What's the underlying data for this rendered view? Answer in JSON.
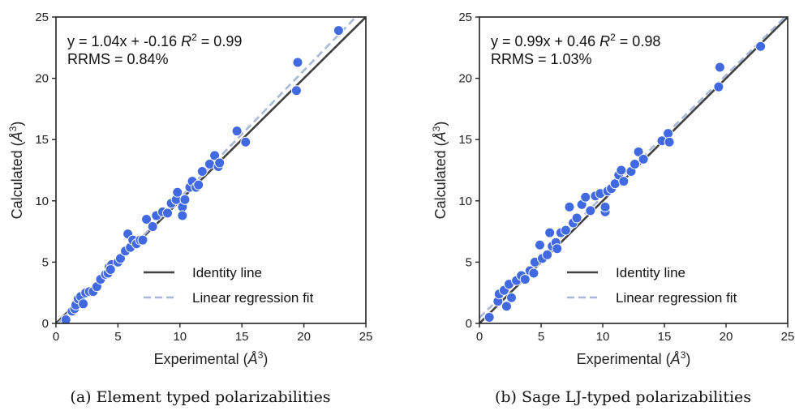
{
  "chart_data": [
    {
      "type": "scatter",
      "annotation": {
        "equation": "y = 1.04x + -0.16",
        "r2_label": "R",
        "r2_value": " = 0.99",
        "rrms": "RRMS = 0.84%"
      },
      "xlabel": {
        "text": "Experimental (",
        "unit": "Å",
        "sup": "3",
        "close": ")"
      },
      "ylabel": {
        "text": "Calculated (",
        "unit": "Å",
        "sup": "3",
        "close": ")"
      },
      "caption": "(a) Element typed polarizabilities",
      "xlim": [
        0,
        25
      ],
      "ylim": [
        0,
        25
      ],
      "ticks": [
        0,
        5,
        10,
        15,
        20,
        25
      ],
      "tick_labels": [
        "0",
        "5",
        "10",
        "15",
        "20",
        "25"
      ],
      "grid": false,
      "legend_position": "lower-right",
      "legend": [
        "Identity line",
        "Linear regression fit"
      ],
      "regression": {
        "slope": 1.04,
        "intercept": -0.16
      },
      "colors": {
        "points": "#4169e1",
        "identity": "#404040",
        "regression": "#a9b8d8"
      },
      "points": [
        [
          0.8,
          0.3
        ],
        [
          1.3,
          1.0
        ],
        [
          1.5,
          1.2
        ],
        [
          1.6,
          1.5
        ],
        [
          1.8,
          2.0
        ],
        [
          2.0,
          2.2
        ],
        [
          2.2,
          1.6
        ],
        [
          2.4,
          2.5
        ],
        [
          2.7,
          2.6
        ],
        [
          3.0,
          2.6
        ],
        [
          3.3,
          3.0
        ],
        [
          3.6,
          3.6
        ],
        [
          4.0,
          4.0
        ],
        [
          4.2,
          4.1
        ],
        [
          4.3,
          4.6
        ],
        [
          4.5,
          4.8
        ],
        [
          4.4,
          4.4
        ],
        [
          5.0,
          5.0
        ],
        [
          5.2,
          5.3
        ],
        [
          5.6,
          5.9
        ],
        [
          5.8,
          7.3
        ],
        [
          6.0,
          6.2
        ],
        [
          6.2,
          6.8
        ],
        [
          6.5,
          6.5
        ],
        [
          6.8,
          6.8
        ],
        [
          7.0,
          6.8
        ],
        [
          7.3,
          8.5
        ],
        [
          7.8,
          7.9
        ],
        [
          8.1,
          8.8
        ],
        [
          8.6,
          9.1
        ],
        [
          9.0,
          9.0
        ],
        [
          9.3,
          9.8
        ],
        [
          9.7,
          10.1
        ],
        [
          9.8,
          10.7
        ],
        [
          10.2,
          9.5
        ],
        [
          10.2,
          8.8
        ],
        [
          10.4,
          10.1
        ],
        [
          10.8,
          11.1
        ],
        [
          11.0,
          11.6
        ],
        [
          11.3,
          11.1
        ],
        [
          11.5,
          11.3
        ],
        [
          11.8,
          12.4
        ],
        [
          12.4,
          13.0
        ],
        [
          12.8,
          13.7
        ],
        [
          13.1,
          12.8
        ],
        [
          13.2,
          13.1
        ],
        [
          14.6,
          15.7
        ],
        [
          15.3,
          14.8
        ],
        [
          19.5,
          21.3
        ],
        [
          19.4,
          19.0
        ],
        [
          22.8,
          23.9
        ]
      ]
    },
    {
      "type": "scatter",
      "annotation": {
        "equation": "y = 0.99x + 0.46",
        "r2_label": "R",
        "r2_value": " = 0.98",
        "rrms": "RRMS = 1.03%"
      },
      "xlabel": {
        "text": "Experimental (",
        "unit": "Å",
        "sup": "3",
        "close": ")"
      },
      "ylabel": {
        "text": "Calculated (",
        "unit": "Å",
        "sup": "3",
        "close": ")"
      },
      "caption": "(b) Sage LJ-typed polarizabilities",
      "xlim": [
        0,
        25
      ],
      "ylim": [
        0,
        25
      ],
      "ticks": [
        0,
        5,
        10,
        15,
        20,
        25
      ],
      "tick_labels": [
        "0",
        "5",
        "10",
        "15",
        "20",
        "25"
      ],
      "grid": false,
      "legend_position": "lower-right",
      "legend": [
        "Identity line",
        "Linear regression fit"
      ],
      "regression": {
        "slope": 0.99,
        "intercept": 0.46
      },
      "colors": {
        "points": "#4169e1",
        "identity": "#404040",
        "regression": "#a9b8d8"
      },
      "points": [
        [
          0.8,
          0.5
        ],
        [
          1.5,
          1.8
        ],
        [
          1.6,
          2.4
        ],
        [
          2.0,
          2.7
        ],
        [
          2.2,
          1.4
        ],
        [
          2.4,
          3.2
        ],
        [
          2.6,
          2.1
        ],
        [
          3.0,
          3.5
        ],
        [
          3.4,
          3.9
        ],
        [
          3.7,
          3.6
        ],
        [
          4.1,
          4.3
        ],
        [
          4.4,
          4.1
        ],
        [
          4.5,
          5.0
        ],
        [
          4.9,
          6.4
        ],
        [
          5.1,
          5.3
        ],
        [
          5.5,
          5.6
        ],
        [
          5.7,
          7.4
        ],
        [
          5.9,
          6.3
        ],
        [
          6.2,
          6.6
        ],
        [
          6.3,
          6.1
        ],
        [
          6.6,
          7.4
        ],
        [
          7.0,
          7.6
        ],
        [
          7.3,
          9.5
        ],
        [
          7.6,
          8.2
        ],
        [
          7.9,
          8.6
        ],
        [
          8.3,
          9.7
        ],
        [
          8.6,
          10.3
        ],
        [
          9.0,
          9.2
        ],
        [
          9.4,
          10.4
        ],
        [
          9.8,
          10.6
        ],
        [
          10.2,
          9.1
        ],
        [
          10.2,
          9.5
        ],
        [
          10.4,
          10.8
        ],
        [
          10.7,
          11.0
        ],
        [
          11.0,
          11.4
        ],
        [
          11.3,
          12.1
        ],
        [
          11.5,
          12.5
        ],
        [
          11.7,
          11.6
        ],
        [
          12.3,
          12.4
        ],
        [
          12.6,
          13.0
        ],
        [
          12.9,
          14.0
        ],
        [
          13.3,
          13.4
        ],
        [
          14.8,
          14.9
        ],
        [
          15.3,
          15.5
        ],
        [
          15.4,
          14.8
        ],
        [
          19.5,
          20.9
        ],
        [
          19.4,
          19.3
        ],
        [
          22.8,
          22.6
        ]
      ]
    }
  ]
}
